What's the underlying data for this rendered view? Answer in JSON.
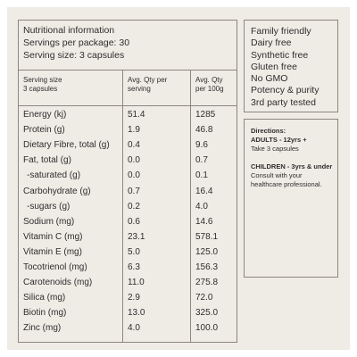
{
  "header": {
    "title": "Nutritional information",
    "servings": "Servings per package: 30",
    "serving_size": "Serving size: 3 capsules"
  },
  "table": {
    "columns": [
      [
        "Serving size",
        "3 capsules"
      ],
      [
        "Avg. Qty per",
        "serving"
      ],
      [
        "Avg. Qty",
        "per 100g"
      ]
    ],
    "rows": [
      [
        "Energy (kj)",
        "51.4",
        "1285"
      ],
      [
        "Protein (g)",
        "1.9",
        "46.8"
      ],
      [
        "Dietary Fibre, total (g)",
        "0.4",
        "9.6"
      ],
      [
        "Fat, total (g)",
        "0.0",
        "0.7"
      ],
      [
        "-saturated (g)",
        "0.0",
        "0.1"
      ],
      [
        "Carbohydrate (g)",
        "0.7",
        "16.4"
      ],
      [
        "-sugars (g)",
        "0.2",
        "4.0"
      ],
      [
        "Sodium (mg)",
        "0.6",
        "14.6"
      ],
      [
        "Vitamin C (mg)",
        "23.1",
        "578.1"
      ],
      [
        "Vitamin E (mg)",
        "5.0",
        "125.0"
      ],
      [
        "Tocotrienol (mg)",
        "6.3",
        "156.3"
      ],
      [
        "Carotenoids (mg)",
        "11.0",
        "275.8"
      ],
      [
        "Silica (mg)",
        "2.9",
        "72.0"
      ],
      [
        "Biotin (mg)",
        "13.0",
        "325.0"
      ],
      [
        "Zinc (mg)",
        "4.0",
        "100.0"
      ]
    ]
  },
  "features": [
    "Family friendly",
    "Dairy free",
    "Synthetic free",
    "Gluten free",
    "No GMO",
    "Potency & purity",
    "3rd party tested"
  ],
  "directions": {
    "title": "Directions:",
    "adults": "ADULTS - 12yrs +",
    "adults_text": "Take 3 capsules",
    "children": "CHILDREN - 3yrs & under",
    "children_text": "Consult with your healthcare professional."
  }
}
